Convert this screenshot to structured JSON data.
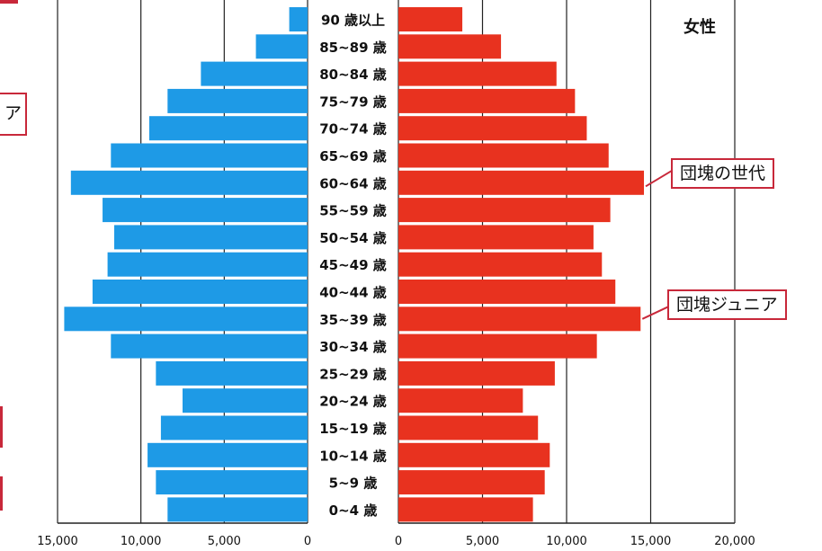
{
  "chart_data": {
    "type": "bar",
    "orientation": "horizontal",
    "categories": [
      "90 歳以上",
      "85~89 歳",
      "80~84 歳",
      "75~79 歳",
      "70~74 歳",
      "65~69 歳",
      "60~64 歳",
      "55~59 歳",
      "50~54 歳",
      "45~49 歳",
      "40~44 歳",
      "35~39 歳",
      "30~34 歳",
      "25~29 歳",
      "20~24 歳",
      "15~19 歳",
      "10~14 歳",
      "5~9 歳",
      "0~4 歳"
    ],
    "series": [
      {
        "color": "#1e9ae6",
        "values": [
          1100,
          3100,
          6400,
          8400,
          9500,
          11800,
          14200,
          12300,
          11600,
          12000,
          12900,
          14600,
          11800,
          9100,
          7500,
          8800,
          9600,
          9100,
          8400
        ]
      },
      {
        "name": "女性",
        "color": "#e8321f",
        "values": [
          3800,
          6100,
          9400,
          10500,
          11200,
          12500,
          14600,
          12600,
          11600,
          12100,
          12900,
          14400,
          11800,
          9300,
          7400,
          8300,
          9000,
          8700,
          8000
        ]
      }
    ],
    "left_axis": {
      "ticks": [
        "15,000",
        "10,000",
        "5,000",
        "0"
      ],
      "xlim": [
        0,
        15000
      ]
    },
    "right_axis": {
      "ticks": [
        "0",
        "5,000",
        "10,000",
        "15,000",
        "20,000"
      ],
      "xlim": [
        0,
        20000
      ]
    },
    "legend_label": "女性",
    "annotations": [
      {
        "text": "団塊の世代",
        "category": "60~64 歳"
      },
      {
        "text": "団塊ジュニア",
        "category": "35~39 歳"
      }
    ],
    "left_edge_fragment": "ア",
    "grid": true
  }
}
